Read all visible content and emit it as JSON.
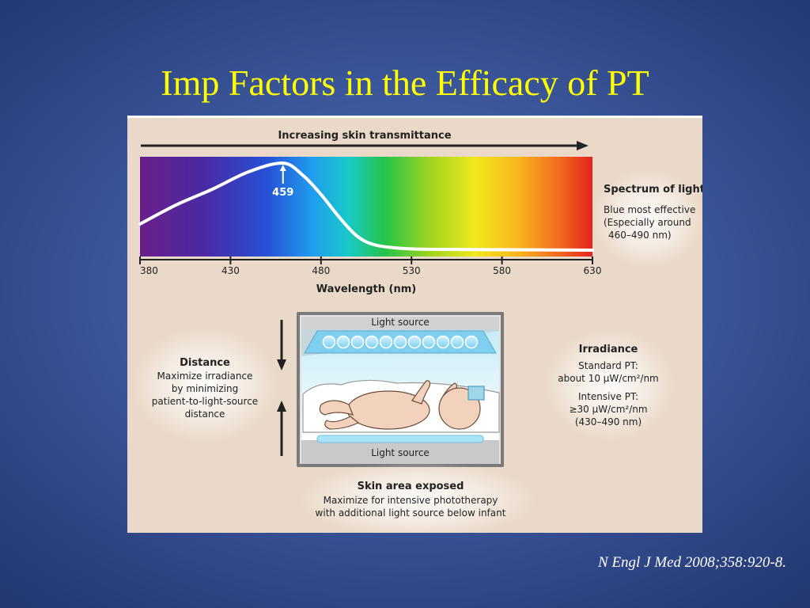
{
  "slide": {
    "title": "Imp Factors in the Efficacy of PT",
    "citation": "N Engl J Med 2008;358:920-8."
  },
  "spectrum": {
    "arrow_label": "Increasing skin transmittance",
    "peak_label": "459",
    "peak_nm": 459,
    "xlabel": "Wavelength (nm)",
    "xlim": [
      380,
      630
    ],
    "ticks": [
      380,
      430,
      480,
      530,
      580,
      630
    ],
    "curve": [
      [
        380,
        0.3
      ],
      [
        400,
        0.52
      ],
      [
        420,
        0.7
      ],
      [
        440,
        0.9
      ],
      [
        459,
        1.0
      ],
      [
        470,
        0.86
      ],
      [
        480,
        0.64
      ],
      [
        490,
        0.38
      ],
      [
        500,
        0.16
      ],
      [
        510,
        0.06
      ],
      [
        525,
        0.02
      ],
      [
        540,
        0.01
      ],
      [
        580,
        0.005
      ],
      [
        630,
        0.0
      ]
    ]
  },
  "spectrum_note": {
    "title": "Spectrum of light",
    "lines": [
      "Blue most effective",
      "(Especially around",
      "460–490 nm)"
    ]
  },
  "distance_note": {
    "title": "Distance",
    "lines": [
      "Maximize irradiance",
      "by minimizing",
      "patient-to-light-source",
      "distance"
    ]
  },
  "irradiance_note": {
    "title": "Irradiance",
    "standard_line1": "Standard PT:",
    "standard_line2": "about 10 μW/cm²/nm",
    "intensive_line1": "Intensive PT:",
    "intensive_line2": "≥30 μW/cm²/nm",
    "intensive_line3": "(430–490 nm)"
  },
  "incubator": {
    "top_label": "Light source",
    "bottom_label": "Light source"
  },
  "skin_note": {
    "title": "Skin area exposed",
    "lines": [
      "Maximize for intensive phototherapy",
      "with additional light source below infant"
    ]
  }
}
